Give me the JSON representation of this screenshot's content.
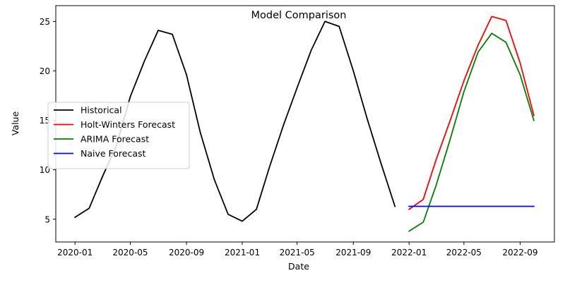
{
  "chart_data": {
    "type": "line",
    "title": "Model Comparison",
    "xlabel": "Date",
    "ylabel": "Value",
    "x_axis": {
      "type": "date",
      "range": [
        "2019-11-20",
        "2022-11-15"
      ],
      "ticks": [
        {
          "date": "2020-01-01",
          "label": "2020-01"
        },
        {
          "date": "2020-05-01",
          "label": "2020-05"
        },
        {
          "date": "2020-09-01",
          "label": "2020-09"
        },
        {
          "date": "2021-01-01",
          "label": "2021-01"
        },
        {
          "date": "2021-05-01",
          "label": "2021-05"
        },
        {
          "date": "2021-09-01",
          "label": "2021-09"
        },
        {
          "date": "2022-01-01",
          "label": "2022-01"
        },
        {
          "date": "2022-05-01",
          "label": "2022-05"
        },
        {
          "date": "2022-09-01",
          "label": "2022-09"
        }
      ]
    },
    "y_axis": {
      "range": [
        2.7,
        26.6
      ],
      "ticks": [
        {
          "value": 5,
          "label": "5"
        },
        {
          "value": 10,
          "label": "10"
        },
        {
          "value": 15,
          "label": "15"
        },
        {
          "value": 20,
          "label": "20"
        },
        {
          "value": 25,
          "label": "25"
        }
      ]
    },
    "grid": false,
    "legend_position": "center-left",
    "series": [
      {
        "name": "Historical",
        "color": "#000000",
        "x": [
          "2020-01-01",
          "2020-02-01",
          "2020-03-01",
          "2020-04-01",
          "2020-05-01",
          "2020-06-01",
          "2020-07-01",
          "2020-08-01",
          "2020-09-01",
          "2020-10-01",
          "2020-11-01",
          "2020-12-01",
          "2021-01-01",
          "2021-02-01",
          "2021-03-01",
          "2021-04-01",
          "2021-05-01",
          "2021-06-01",
          "2021-07-01",
          "2021-08-01",
          "2021-09-01",
          "2021-10-01",
          "2021-11-01",
          "2021-12-01"
        ],
        "y": [
          5.2,
          6.1,
          9.3,
          12.5,
          17.4,
          21.0,
          24.1,
          23.7,
          19.6,
          13.8,
          9.0,
          5.5,
          4.8,
          6.0,
          10.2,
          14.5,
          18.3,
          22.1,
          25.0,
          24.5,
          20.0,
          15.2,
          10.6,
          6.3
        ]
      },
      {
        "name": "Holt-Winters Forecast",
        "color": "#ff0000",
        "x": [
          "2022-01-01",
          "2022-02-01",
          "2022-03-01",
          "2022-04-01",
          "2022-05-01",
          "2022-06-01",
          "2022-07-01",
          "2022-08-01",
          "2022-09-01",
          "2022-10-01"
        ],
        "y": [
          6.0,
          7.0,
          11.0,
          15.0,
          19.0,
          22.6,
          25.5,
          25.1,
          20.8,
          15.5
        ]
      },
      {
        "name": "ARIMA Forecast",
        "color": "#008000",
        "x": [
          "2022-01-01",
          "2022-02-01",
          "2022-03-01",
          "2022-04-01",
          "2022-05-01",
          "2022-06-01",
          "2022-07-01",
          "2022-08-01",
          "2022-09-01",
          "2022-10-01"
        ],
        "y": [
          3.8,
          4.7,
          8.4,
          13.1,
          17.9,
          21.9,
          23.8,
          22.9,
          19.6,
          15.0
        ]
      },
      {
        "name": "Naive Forecast",
        "color": "#0000ff",
        "x": [
          "2022-01-01",
          "2022-02-01",
          "2022-03-01",
          "2022-04-01",
          "2022-05-01",
          "2022-06-01",
          "2022-07-01",
          "2022-08-01",
          "2022-09-01",
          "2022-10-01"
        ],
        "y": [
          6.3,
          6.3,
          6.3,
          6.3,
          6.3,
          6.3,
          6.3,
          6.3,
          6.3,
          6.3
        ]
      }
    ]
  }
}
